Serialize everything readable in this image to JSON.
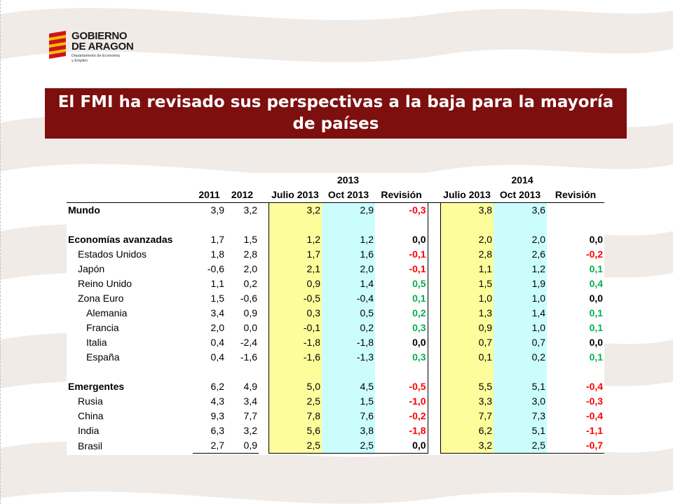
{
  "header": {
    "logo_line1": "GOBIERNO",
    "logo_line2": "DE ARAGON",
    "logo_line3": "Departamento de Economía",
    "logo_line4": "y Empleo"
  },
  "banner": {
    "title": "El FMI ha revisado sus perspectivas a la baja para la mayoría de países"
  },
  "table": {
    "year_2013": "2013",
    "year_2014": "2014",
    "columns": [
      "",
      "2011",
      "2012",
      "Julio 2013",
      "Oct 2013",
      "Revisión",
      "Julio 2013",
      "Oct 2013",
      "Revisión"
    ],
    "rows": [
      {
        "name": "Mundo",
        "level": 0,
        "v2011": "3,9",
        "v2012": "3,2",
        "jul13": "3,2",
        "oct13": "2,9",
        "rev13": "-0,3",
        "jul14": "3,8",
        "oct14": "3,6",
        "rev14": ""
      },
      {
        "name": "",
        "level": 0,
        "v2011": "",
        "v2012": "",
        "jul13": "",
        "oct13": "",
        "rev13": "",
        "jul14": "",
        "oct14": "",
        "rev14": ""
      },
      {
        "name": "Economías avanzadas",
        "level": 0,
        "v2011": "1,7",
        "v2012": "1,5",
        "jul13": "1,2",
        "oct13": "1,2",
        "rev13": "0,0",
        "jul14": "2,0",
        "oct14": "2,0",
        "rev14": "0,0"
      },
      {
        "name": "Estados Unidos",
        "level": 1,
        "v2011": "1,8",
        "v2012": "2,8",
        "jul13": "1,7",
        "oct13": "1,6",
        "rev13": "-0,1",
        "jul14": "2,8",
        "oct14": "2,6",
        "rev14": "-0,2"
      },
      {
        "name": "Japón",
        "level": 1,
        "v2011": "-0,6",
        "v2012": "2,0",
        "jul13": "2,1",
        "oct13": "2,0",
        "rev13": "-0,1",
        "jul14": "1,1",
        "oct14": "1,2",
        "rev14": "0,1"
      },
      {
        "name": "Reino Unido",
        "level": 1,
        "v2011": "1,1",
        "v2012": "0,2",
        "jul13": "0,9",
        "oct13": "1,4",
        "rev13": "0,5",
        "jul14": "1,5",
        "oct14": "1,9",
        "rev14": "0,4"
      },
      {
        "name": "Zona Euro",
        "level": 1,
        "v2011": "1,5",
        "v2012": "-0,6",
        "jul13": "-0,5",
        "oct13": "-0,4",
        "rev13": "0,1",
        "jul14": "1,0",
        "oct14": "1,0",
        "rev14": "0,0"
      },
      {
        "name": "Alemania",
        "level": 2,
        "v2011": "3,4",
        "v2012": "0,9",
        "jul13": "0,3",
        "oct13": "0,5",
        "rev13": "0,2",
        "jul14": "1,3",
        "oct14": "1,4",
        "rev14": "0,1"
      },
      {
        "name": "Francia",
        "level": 2,
        "v2011": "2,0",
        "v2012": "0,0",
        "jul13": "-0,1",
        "oct13": "0,2",
        "rev13": "0,3",
        "jul14": "0,9",
        "oct14": "1,0",
        "rev14": "0,1"
      },
      {
        "name": "Italia",
        "level": 2,
        "v2011": "0,4",
        "v2012": "-2,4",
        "jul13": "-1,8",
        "oct13": "-1,8",
        "rev13": "0,0",
        "jul14": "0,7",
        "oct14": "0,7",
        "rev14": "0,0"
      },
      {
        "name": "España",
        "level": 2,
        "v2011": "0,4",
        "v2012": "-1,6",
        "jul13": "-1,6",
        "oct13": "-1,3",
        "rev13": "0,3",
        "jul14": "0,1",
        "oct14": "0,2",
        "rev14": "0,1"
      },
      {
        "name": "",
        "level": 0,
        "v2011": "",
        "v2012": "",
        "jul13": "",
        "oct13": "",
        "rev13": "",
        "jul14": "",
        "oct14": "",
        "rev14": ""
      },
      {
        "name": "Emergentes",
        "level": 0,
        "v2011": "6,2",
        "v2012": "4,9",
        "jul13": "5,0",
        "oct13": "4,5",
        "rev13": "-0,5",
        "jul14": "5,5",
        "oct14": "5,1",
        "rev14": "-0,4"
      },
      {
        "name": "Rusia",
        "level": 1,
        "v2011": "4,3",
        "v2012": "3,4",
        "jul13": "2,5",
        "oct13": "1,5",
        "rev13": "-1,0",
        "jul14": "3,3",
        "oct14": "3,0",
        "rev14": "-0,3"
      },
      {
        "name": "China",
        "level": 1,
        "v2011": "9,3",
        "v2012": "7,7",
        "jul13": "7,8",
        "oct13": "7,6",
        "rev13": "-0,2",
        "jul14": "7,7",
        "oct14": "7,3",
        "rev14": "-0,4"
      },
      {
        "name": "India",
        "level": 1,
        "v2011": "6,3",
        "v2012": "3,2",
        "jul13": "5,6",
        "oct13": "3,8",
        "rev13": "-1,8",
        "jul14": "6,2",
        "oct14": "5,1",
        "rev14": "-1,1"
      },
      {
        "name": "Brasil",
        "level": 1,
        "v2011": "2,7",
        "v2012": "0,9",
        "jul13": "2,5",
        "oct13": "2,5",
        "rev13": "0,0",
        "jul14": "3,2",
        "oct14": "2,5",
        "rev14": "-0,7"
      }
    ]
  },
  "colors": {
    "banner_bg": "#7d0f0f",
    "july_col": "#fdfd9c",
    "oct_col": "#ccfdfd",
    "negative": "#ff0000",
    "positive": "#00b050"
  }
}
